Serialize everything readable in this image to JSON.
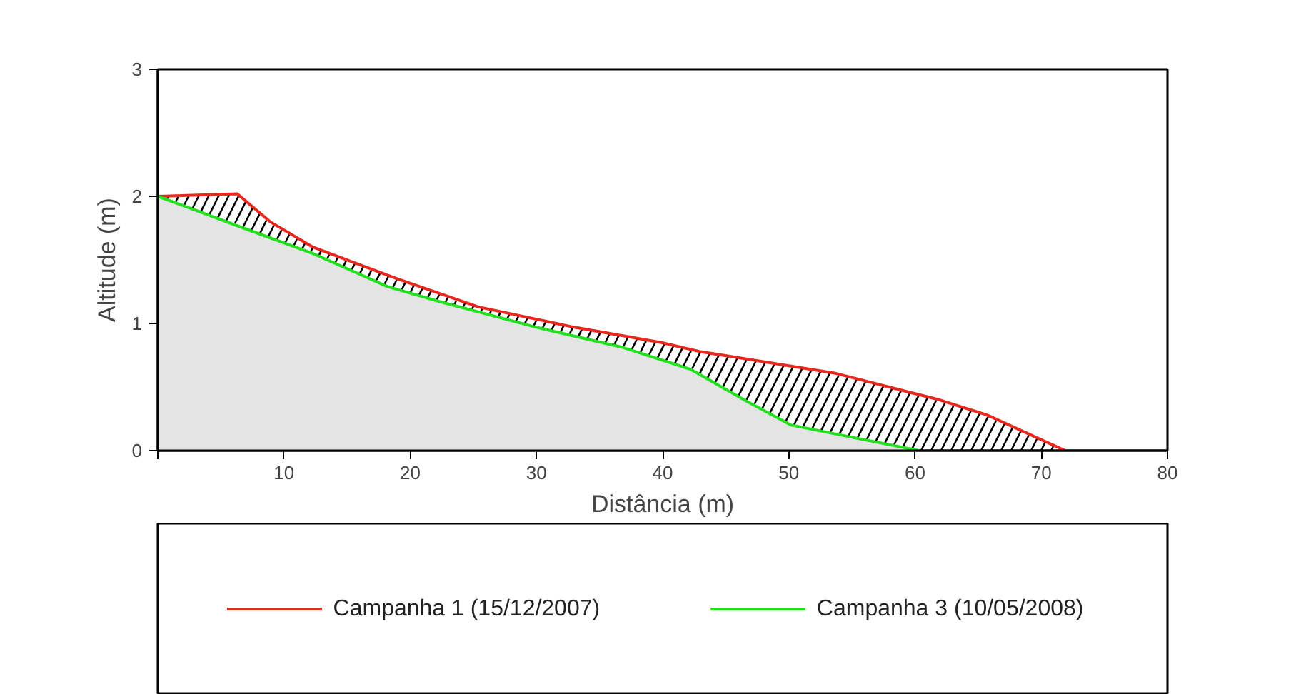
{
  "chart_data": {
    "type": "area",
    "xlabel": "Distância (m)",
    "ylabel": "Altitude (m)",
    "xlim": [
      0,
      80
    ],
    "ylim": [
      0,
      3
    ],
    "xticks": [
      {
        "value": 0,
        "label": null
      },
      10,
      20,
      30,
      40,
      50,
      60,
      70,
      80
    ],
    "yticks": [
      0,
      1,
      2,
      3
    ],
    "grid": false,
    "legend": "bottom",
    "series": [
      {
        "name": "Campanha 1 (15/12/2007)",
        "color": "#e8281e",
        "x": [
          0,
          6.3,
          8.9,
          12.3,
          19.0,
          25.4,
          33.0,
          39.9,
          42.9,
          53.6,
          61.9,
          65.7,
          71.9
        ],
        "values": [
          2.0,
          2.02,
          1.8,
          1.6,
          1.35,
          1.13,
          0.97,
          0.85,
          0.78,
          0.61,
          0.4,
          0.28,
          0
        ]
      },
      {
        "name": "Campanha 3 (10/05/2008)",
        "color": "#22e01e",
        "x": [
          0,
          6.8,
          12.3,
          18.2,
          22.4,
          30.0,
          33.0,
          36.9,
          42.2,
          46.8,
          50.2,
          60.3
        ],
        "values": [
          2.0,
          1.75,
          1.55,
          1.29,
          1.17,
          0.97,
          0.9,
          0.81,
          0.64,
          0.38,
          0.2,
          0
        ]
      }
    ]
  }
}
